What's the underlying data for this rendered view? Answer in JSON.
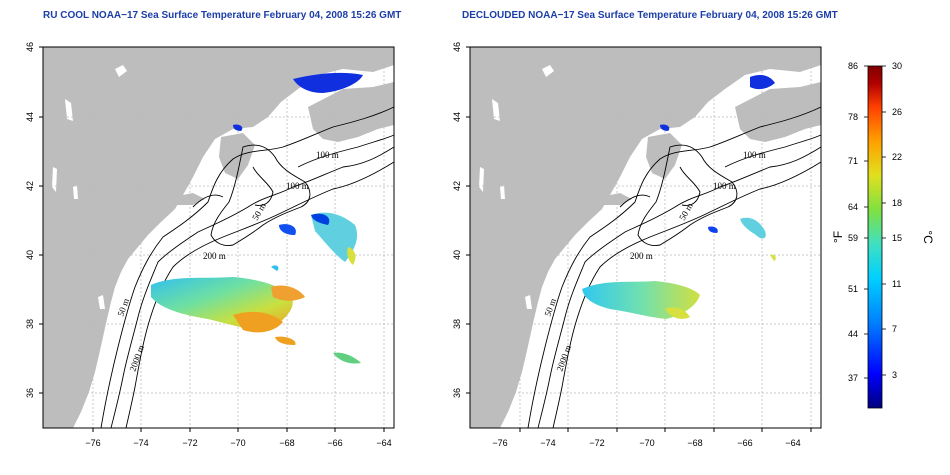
{
  "maps": [
    {
      "id": "left",
      "title": "RU COOL NOAA−17 Sea Surface Temperature February 04, 2008 15:26 GMT",
      "x_ticks": [
        "−76",
        "−74",
        "−72",
        "−70",
        "−68",
        "−66",
        "−64"
      ],
      "y_ticks": [
        "36",
        "38",
        "40",
        "42",
        "44",
        "46"
      ],
      "contour_labels": [
        "100 m",
        "100 m",
        "50 m",
        "200 m",
        "50 m",
        "2000 m"
      ]
    },
    {
      "id": "right",
      "title": "DECLOUDED NOAA−17 Sea Surface Temperature February 04, 2008 15:26 GMT",
      "x_ticks": [
        "−76",
        "−74",
        "−72",
        "−70",
        "−68",
        "−66",
        "−64"
      ],
      "y_ticks": [
        "36",
        "38",
        "40",
        "42",
        "44",
        "46"
      ],
      "contour_labels": [
        "100 m",
        "100 m",
        "50 m",
        "200 m",
        "50 m",
        "2000 m"
      ]
    }
  ],
  "colorbar": {
    "fahrenheit_ticks": [
      "86",
      "78",
      "71",
      "64",
      "59",
      "51",
      "44",
      "37"
    ],
    "celsius_ticks": [
      "30",
      "26",
      "22",
      "18",
      "15",
      "11",
      "7",
      "3"
    ],
    "left_unit": "°F",
    "right_unit": "°C",
    "colors": [
      "#000080",
      "#0000ff",
      "#0080ff",
      "#00d0ff",
      "#40e0c0",
      "#80e040",
      "#e0e020",
      "#ffa000",
      "#ff4000",
      "#b00000",
      "#800000"
    ]
  }
}
